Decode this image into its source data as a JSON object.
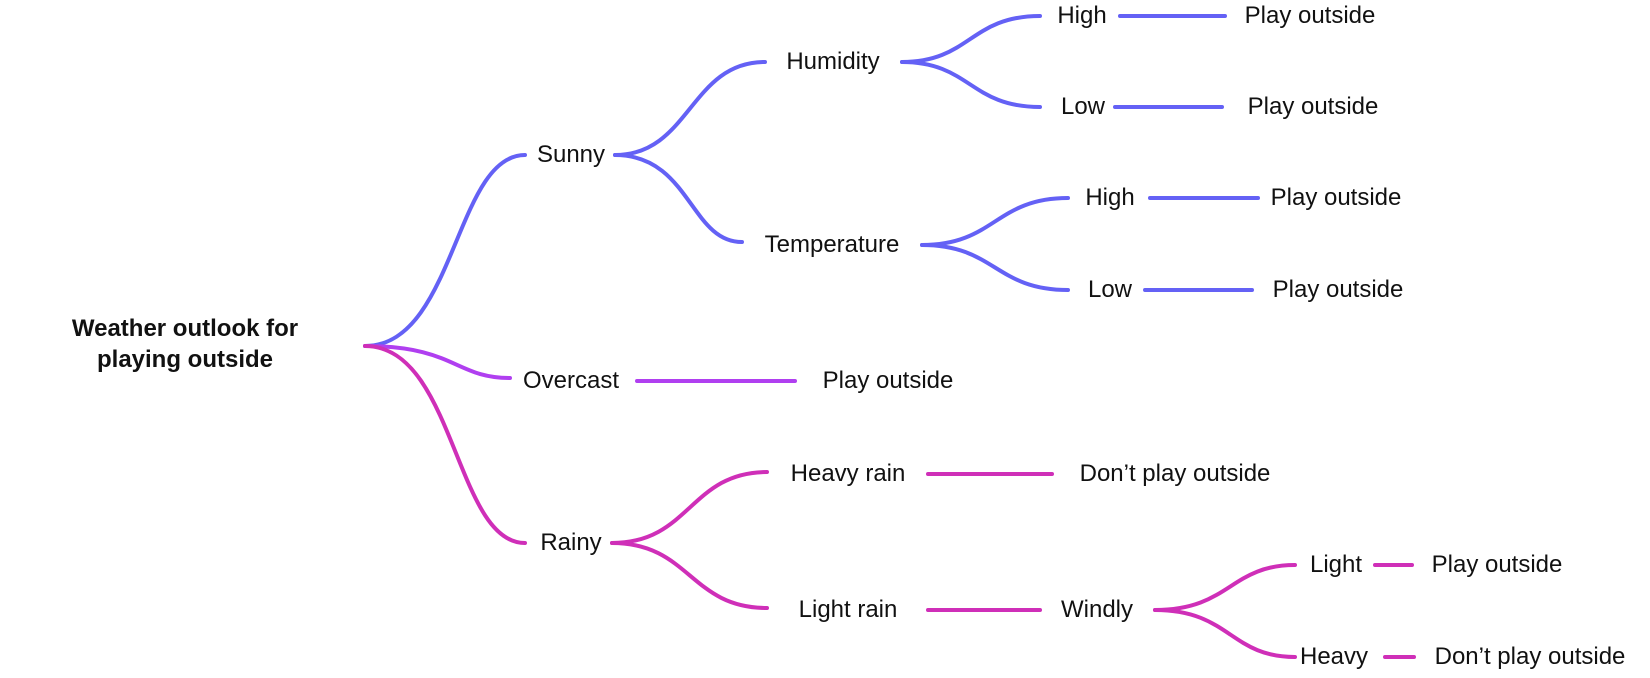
{
  "colors": {
    "blue": "#6461f5",
    "violet": "#b03ff0",
    "magenta": "#cf2fb8"
  },
  "tree": {
    "root": "Weather outlook for playing outside",
    "sunny": {
      "label": "Sunny",
      "humidity": {
        "label": "Humidity",
        "high": {
          "label": "High",
          "outcome": "Play outside"
        },
        "low": {
          "label": "Low",
          "outcome": "Play outside"
        }
      },
      "temperature": {
        "label": "Temperature",
        "high": {
          "label": "High",
          "outcome": "Play outside"
        },
        "low": {
          "label": "Low",
          "outcome": "Play outside"
        }
      }
    },
    "overcast": {
      "label": "Overcast",
      "outcome": "Play outside"
    },
    "rainy": {
      "label": "Rainy",
      "heavy_rain": {
        "label": "Heavy rain",
        "outcome": "Don’t play outside"
      },
      "light_rain": {
        "label": "Light rain",
        "windly": {
          "label": "Windly",
          "light": {
            "label": "Light",
            "outcome": "Play outside"
          },
          "heavy": {
            "label": "Heavy",
            "outcome": "Don’t play outside"
          }
        }
      }
    }
  }
}
